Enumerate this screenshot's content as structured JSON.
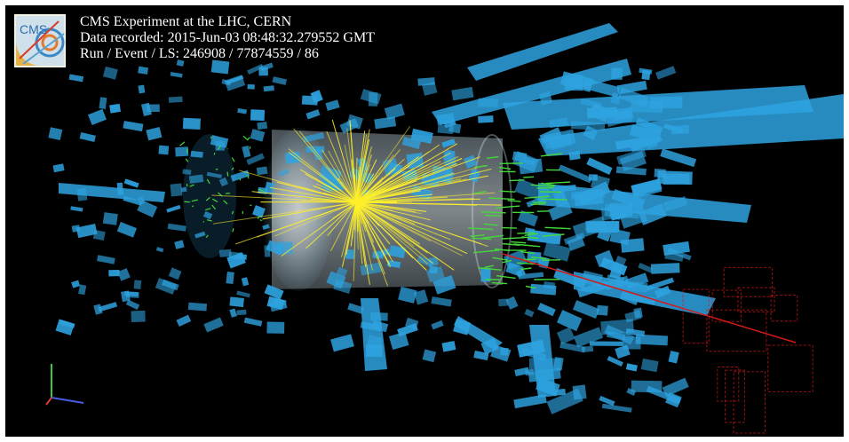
{
  "event_info": {
    "experiment": "CMS Experiment at the LHC, CERN",
    "recorded": "Data recorded: 2015-Jun-03 08:48:32.279552 GMT",
    "run_event_ls": "Run / Event / LS: 246908 / 77874559 / 86"
  },
  "logo": {
    "text": "CMS"
  },
  "colors": {
    "background": "#000000",
    "calorimeter": "#2ea3e0",
    "tracks_core": "#ffef2a",
    "tracks_secondary": "#43d83a",
    "muon_chambers": "#d41a1a",
    "barrel": "#cfe8f5"
  },
  "icons": {
    "logo": "cms-logo-icon",
    "axes": "coordinate-axes-icon"
  }
}
